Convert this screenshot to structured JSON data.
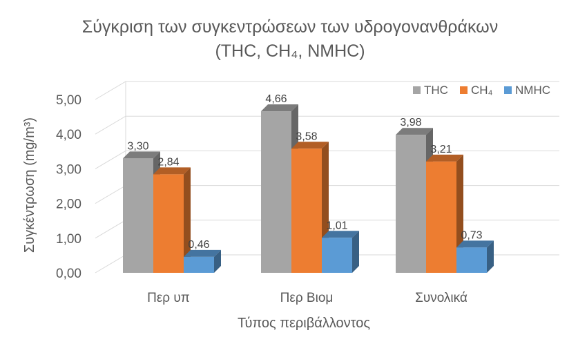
{
  "chart_data": {
    "type": "bar",
    "title": "Σύγκριση των συγκεντρώσεων των υδρογονανθράκων",
    "subtitle": "(THC, CH₄, NMHC)",
    "xlabel": "Τύπος περιβάλλοντος",
    "ylabel": "Συγκέντρωση (mg/m³)",
    "ylim": [
      0,
      5
    ],
    "yticks": [
      "0,00",
      "1,00",
      "2,00",
      "3,00",
      "4,00",
      "5,00"
    ],
    "grid": true,
    "legend": "top-right",
    "categories": [
      "Περ υπ",
      "Περ Βιομ",
      "Συνολικά"
    ],
    "series": [
      {
        "name": "THC",
        "values": [
          3.3,
          4.66,
          3.98
        ],
        "labels": [
          "3,30",
          "4,66",
          "3,98"
        ],
        "color": "#A5A5A5"
      },
      {
        "name": "CH₄",
        "values": [
          2.84,
          3.58,
          3.21
        ],
        "labels": [
          "2,84",
          "3,58",
          "3,21"
        ],
        "color": "#ED7D31"
      },
      {
        "name": "NMHC",
        "values": [
          0.46,
          1.01,
          0.73
        ],
        "labels": [
          "0,46",
          "1,01",
          "0,73"
        ],
        "color": "#5B9BD5"
      }
    ]
  }
}
